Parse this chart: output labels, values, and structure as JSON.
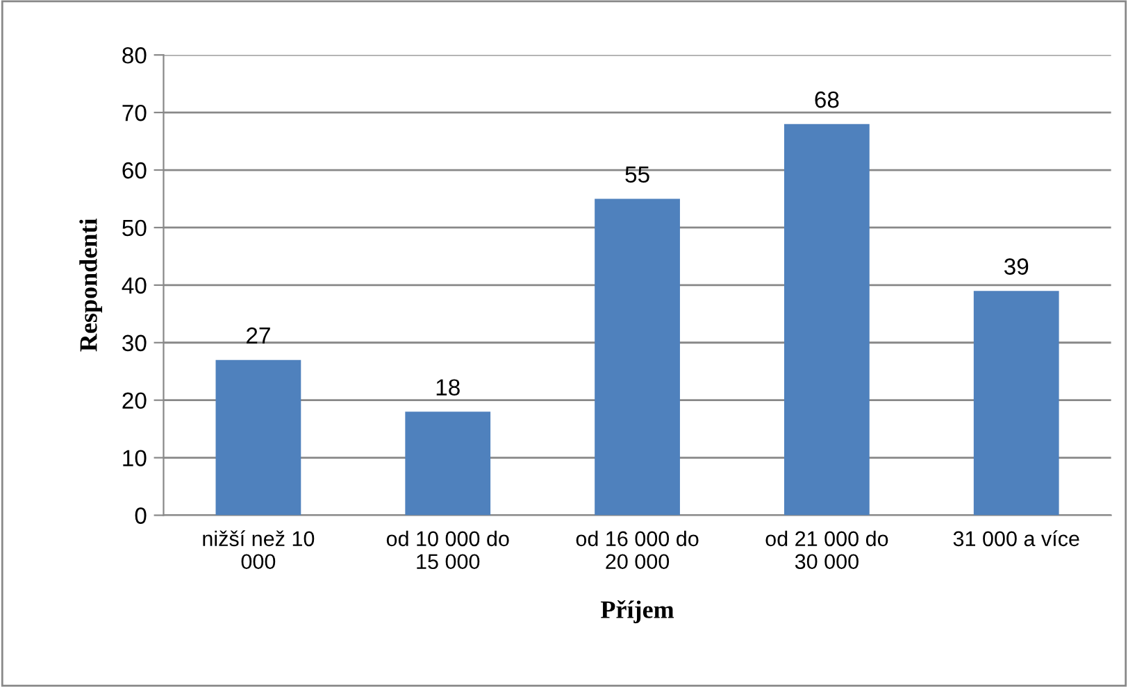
{
  "chart_data": {
    "type": "bar",
    "xlabel": "Příjem",
    "ylabel": "Respondenti",
    "categories": [
      "nižší než 10 000",
      "od 10 000 do 15 000",
      "od 16 000 do 20 000",
      "od 21 000 do 30 000",
      "31 000 a více"
    ],
    "values": [
      27,
      18,
      55,
      68,
      39
    ],
    "color": "#4f81bd",
    "ylim": [
      0,
      80
    ],
    "yticks": [
      0,
      10,
      20,
      30,
      40,
      50,
      60,
      70,
      80
    ],
    "grid": "y",
    "data_labels": true,
    "legend": false
  }
}
